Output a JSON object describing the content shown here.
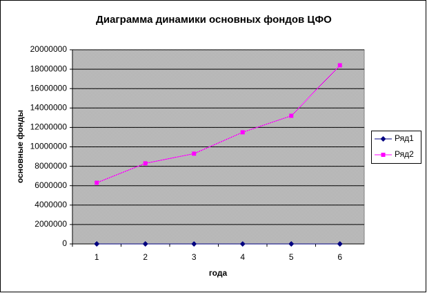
{
  "chart_data": {
    "type": "line",
    "title": "Диаграмма динамики основных фондов ЦФО",
    "x_label": "года",
    "y_label": "основные фонды",
    "categories": [
      "1",
      "2",
      "3",
      "4",
      "5",
      "6"
    ],
    "series": [
      {
        "name": "Ряд1",
        "color": "#000080",
        "marker": "diamond",
        "values": [
          0,
          0,
          0,
          0,
          0,
          0
        ]
      },
      {
        "name": "Ряд2",
        "color": "#ff00ff",
        "marker": "square",
        "values": [
          6300000,
          8300000,
          9300000,
          11500000,
          13200000,
          18400000
        ]
      }
    ],
    "ylim": [
      0,
      20000000
    ],
    "yticks": [
      0,
      2000000,
      4000000,
      6000000,
      8000000,
      10000000,
      12000000,
      14000000,
      16000000,
      18000000,
      20000000
    ],
    "grid": true,
    "legend": "right"
  }
}
